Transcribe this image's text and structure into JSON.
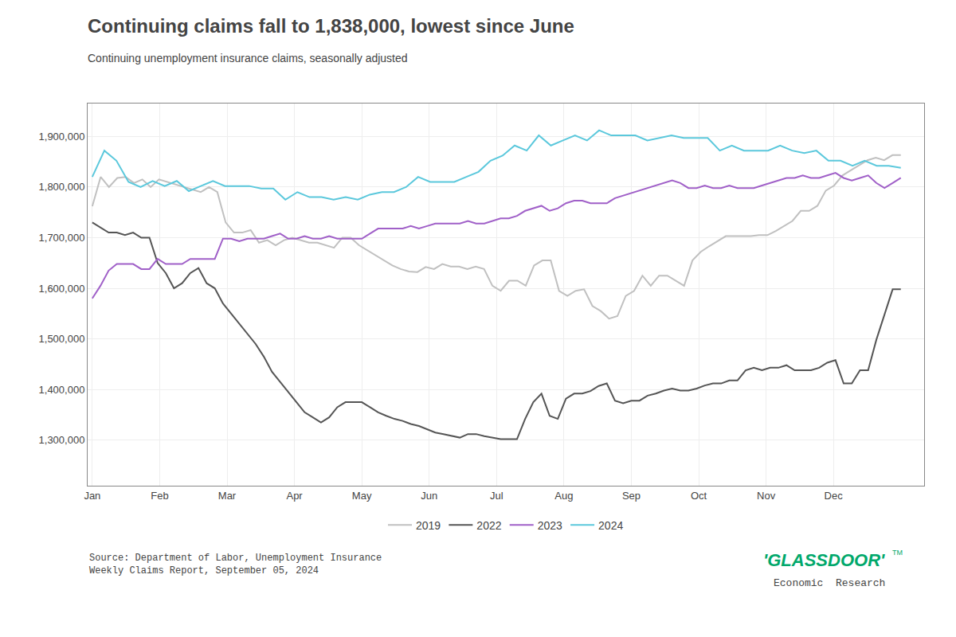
{
  "chart_data": {
    "type": "line",
    "title": "Continuing claims fall to 1,838,000, lowest since June",
    "subtitle": "Continuing unemployment insurance claims, seasonally adjusted",
    "source": "Source: Department of Labor, Unemployment Insurance\nWeekly Claims Report, September 05, 2024",
    "annotations": [
      {
        "text": "'GLASSDOOR'",
        "color": "#00a86b"
      },
      {
        "text": "TM",
        "color": "#00a86b"
      },
      {
        "text": "Economic  Research"
      }
    ],
    "xlim": [
      -0.3,
      53.5
    ],
    "xticks": [
      {
        "value": 0,
        "label": "Jan"
      },
      {
        "value": 4.3333,
        "label": "Feb"
      },
      {
        "value": 8.6667,
        "label": "Mar"
      },
      {
        "value": 13,
        "label": "Apr"
      },
      {
        "value": 17.3333,
        "label": "May"
      },
      {
        "value": 21.6667,
        "label": "Jun"
      },
      {
        "value": 26,
        "label": "Jul"
      },
      {
        "value": 30.3333,
        "label": "Aug"
      },
      {
        "value": 34.6667,
        "label": "Sep"
      },
      {
        "value": 39,
        "label": "Oct"
      },
      {
        "value": 43.3333,
        "label": "Nov"
      },
      {
        "value": 47.6667,
        "label": "Dec"
      }
    ],
    "ylim": [
      1210000,
      1965000
    ],
    "yticks": [
      {
        "value": 1300000,
        "label": "1,300,000"
      },
      {
        "value": 1400000,
        "label": "1,400,000"
      },
      {
        "value": 1500000,
        "label": "1,500,000"
      },
      {
        "value": 1600000,
        "label": "1,600,000"
      },
      {
        "value": 1700000,
        "label": "1,700,000"
      },
      {
        "value": 1800000,
        "label": "1,800,000"
      },
      {
        "value": 1900000,
        "label": "1,900,000"
      }
    ],
    "grid": true,
    "legend": "bottom",
    "series": [
      {
        "name": "2019",
        "color": "#c0c0c0",
        "x": [
          0,
          0.5361,
          1.0722,
          1.6082,
          2.1443,
          2.6804,
          3.2165,
          3.7526,
          4.2887,
          4.8247,
          5.3608,
          5.8969,
          6.433,
          6.9691,
          7.5052,
          8.0412,
          8.5773,
          9.1134,
          9.6495,
          10.1856,
          10.7216,
          11.2577,
          11.7938,
          12.3299,
          12.866,
          13.4021,
          13.9381,
          14.4742,
          15.0103,
          15.5464,
          16.0825,
          16.6186,
          17.1546,
          17.6907,
          18.2268,
          18.7629,
          19.299,
          19.8351,
          20.3711,
          20.9072,
          21.4433,
          21.9794,
          22.5155,
          23.0515,
          23.5876,
          24.1237,
          24.6598,
          25.1959,
          25.732,
          26.268,
          26.8041,
          27.3402,
          27.8763,
          28.4124,
          28.9485,
          29.4845,
          30.0206,
          30.5567,
          31.0928,
          31.6289,
          32.1649,
          32.701,
          33.2371,
          33.7732,
          34.3093,
          34.8454,
          35.3814,
          35.9175,
          36.4536,
          36.9897,
          37.5258,
          38.0619,
          38.5979,
          39.134,
          39.6701,
          40.2062,
          40.7423,
          41.2784,
          41.8144,
          42.3505,
          42.8866,
          43.4227,
          43.9588,
          44.4948,
          45.0309,
          45.567,
          46.1031,
          46.6392,
          47.1753,
          47.7113,
          48.2474,
          48.7835,
          49.3196,
          49.8557,
          50.3918,
          50.9278,
          51.4639,
          52
        ],
        "values": [
          1762000,
          1820000,
          1800000,
          1818000,
          1820000,
          1808000,
          1815000,
          1800000,
          1815000,
          1810000,
          1805000,
          1800000,
          1795000,
          1790000,
          1800000,
          1790000,
          1730000,
          1710000,
          1710000,
          1715000,
          1690000,
          1695000,
          1685000,
          1695000,
          1700000,
          1695000,
          1690000,
          1690000,
          1685000,
          1680000,
          1700000,
          1700000,
          1685000,
          1675000,
          1665000,
          1655000,
          1645000,
          1638000,
          1633000,
          1632000,
          1642000,
          1638000,
          1648000,
          1643000,
          1643000,
          1638000,
          1643000,
          1638000,
          1605000,
          1595000,
          1615000,
          1615000,
          1605000,
          1645000,
          1655000,
          1655000,
          1595000,
          1585000,
          1595000,
          1598000,
          1565000,
          1555000,
          1540000,
          1545000,
          1585000,
          1595000,
          1625000,
          1605000,
          1625000,
          1625000,
          1615000,
          1605000,
          1655000,
          1672000,
          1683000,
          1693000,
          1703000,
          1703000,
          1703000,
          1703000,
          1705000,
          1705000,
          1713000,
          1723000,
          1733000,
          1753000,
          1753000,
          1763000,
          1793000,
          1803000,
          1823000,
          1833000,
          1843000,
          1853000,
          1858000,
          1853000,
          1863000,
          1863000
        ]
      },
      {
        "name": "2022",
        "color": "#555555",
        "x": [
          0,
          0.5253,
          1.0505,
          1.5758,
          2.101,
          2.6263,
          3.1515,
          3.6768,
          4.202,
          4.7273,
          5.2525,
          5.7778,
          6.303,
          6.8283,
          7.3535,
          7.8788,
          8.404,
          8.9293,
          9.4545,
          9.9798,
          10.5051,
          11.0303,
          11.5556,
          12.0808,
          12.6061,
          13.1313,
          13.6566,
          14.1818,
          14.7071,
          15.2323,
          15.7576,
          16.2828,
          16.8081,
          17.3333,
          17.8586,
          18.3838,
          18.9091,
          19.4343,
          19.9596,
          20.4848,
          21.0101,
          21.5354,
          22.0606,
          22.5859,
          23.1111,
          23.6364,
          24.1616,
          24.6869,
          25.2121,
          25.7374,
          26.2626,
          26.7879,
          27.3131,
          27.8384,
          28.3636,
          28.8889,
          29.4141,
          29.9394,
          30.4646,
          30.9899,
          31.5152,
          32.0404,
          32.5657,
          33.0909,
          33.6162,
          34.1414,
          34.6667,
          35.1919,
          35.7172,
          36.2424,
          36.7677,
          37.2929,
          37.8182,
          38.3434,
          38.8687,
          39.3939,
          39.9192,
          40.4444,
          40.9697,
          41.4949,
          42.0202,
          42.5455,
          43.0707,
          43.596,
          44.1212,
          44.6465,
          45.1717,
          45.697,
          46.2222,
          46.7475,
          47.2727,
          47.798,
          48.3232,
          48.8485,
          49.3737,
          49.899,
          50.4242,
          50.9495,
          51.4747,
          52
        ],
        "values": [
          1730000,
          1720000,
          1710000,
          1710000,
          1705000,
          1710000,
          1700000,
          1700000,
          1650000,
          1630000,
          1600000,
          1610000,
          1630000,
          1640000,
          1610000,
          1600000,
          1570000,
          1550000,
          1530000,
          1510000,
          1490000,
          1465000,
          1435000,
          1415000,
          1395000,
          1375000,
          1355000,
          1345000,
          1335000,
          1345000,
          1365000,
          1375000,
          1375000,
          1375000,
          1365000,
          1355000,
          1348000,
          1342000,
          1338000,
          1332000,
          1328000,
          1322000,
          1315000,
          1312000,
          1308000,
          1305000,
          1312000,
          1312000,
          1308000,
          1305000,
          1302000,
          1302000,
          1302000,
          1342000,
          1375000,
          1392000,
          1348000,
          1342000,
          1382000,
          1392000,
          1392000,
          1397000,
          1407000,
          1412000,
          1378000,
          1373000,
          1378000,
          1378000,
          1388000,
          1392000,
          1398000,
          1402000,
          1398000,
          1398000,
          1402000,
          1408000,
          1412000,
          1412000,
          1418000,
          1418000,
          1438000,
          1443000,
          1438000,
          1443000,
          1443000,
          1448000,
          1438000,
          1438000,
          1438000,
          1443000,
          1453000,
          1458000,
          1412000,
          1412000,
          1438000,
          1438000,
          1498000,
          1548000,
          1598000,
          1598000
        ]
      },
      {
        "name": "2023",
        "color": "#a060c8",
        "x": [
          0,
          0.5253,
          1.0505,
          1.5758,
          2.101,
          2.6263,
          3.1515,
          3.6768,
          4.202,
          4.7273,
          5.2525,
          5.7778,
          6.303,
          6.8283,
          7.3535,
          7.8788,
          8.404,
          8.9293,
          9.4545,
          9.9798,
          10.5051,
          11.0303,
          11.5556,
          12.0808,
          12.6061,
          13.1313,
          13.6566,
          14.1818,
          14.7071,
          15.2323,
          15.7576,
          16.2828,
          16.8081,
          17.3333,
          17.8586,
          18.3838,
          18.9091,
          19.4343,
          19.9596,
          20.4848,
          21.0101,
          21.5354,
          22.0606,
          22.5859,
          23.1111,
          23.6364,
          24.1616,
          24.6869,
          25.2121,
          25.7374,
          26.2626,
          26.7879,
          27.3131,
          27.8384,
          28.3636,
          28.8889,
          29.4141,
          29.9394,
          30.4646,
          30.9899,
          31.5152,
          32.0404,
          32.5657,
          33.0909,
          33.6162,
          34.1414,
          34.6667,
          35.1919,
          35.7172,
          36.2424,
          36.7677,
          37.2929,
          37.8182,
          38.3434,
          38.8687,
          39.3939,
          39.9192,
          40.4444,
          40.9697,
          41.4949,
          42.0202,
          42.5455,
          43.0707,
          43.596,
          44.1212,
          44.6465,
          45.1717,
          45.697,
          46.2222,
          46.7475,
          47.2727,
          47.798,
          48.3232,
          48.8485,
          49.3737,
          49.899,
          50.4242,
          50.9495,
          51.4747,
          52
        ],
        "values": [
          1580000,
          1605000,
          1635000,
          1648000,
          1648000,
          1648000,
          1638000,
          1638000,
          1658000,
          1648000,
          1648000,
          1648000,
          1658000,
          1658000,
          1658000,
          1658000,
          1698000,
          1698000,
          1693000,
          1698000,
          1698000,
          1698000,
          1703000,
          1708000,
          1698000,
          1698000,
          1703000,
          1698000,
          1698000,
          1703000,
          1698000,
          1698000,
          1698000,
          1698000,
          1708000,
          1718000,
          1718000,
          1718000,
          1718000,
          1723000,
          1718000,
          1723000,
          1728000,
          1728000,
          1728000,
          1728000,
          1733000,
          1728000,
          1728000,
          1733000,
          1738000,
          1738000,
          1743000,
          1753000,
          1758000,
          1763000,
          1753000,
          1758000,
          1768000,
          1773000,
          1773000,
          1768000,
          1768000,
          1768000,
          1778000,
          1783000,
          1788000,
          1793000,
          1798000,
          1803000,
          1808000,
          1813000,
          1808000,
          1798000,
          1798000,
          1803000,
          1798000,
          1798000,
          1803000,
          1798000,
          1798000,
          1798000,
          1803000,
          1808000,
          1813000,
          1818000,
          1818000,
          1823000,
          1818000,
          1818000,
          1823000,
          1828000,
          1818000,
          1813000,
          1818000,
          1823000,
          1808000,
          1798000,
          1808000,
          1818000
        ]
      },
      {
        "name": "2024",
        "color": "#5bc8dc",
        "x": [
          0,
          0.7761,
          1.5522,
          2.3284,
          3.1045,
          3.8806,
          4.6567,
          5.4328,
          6.209,
          6.9851,
          7.7612,
          8.5373,
          9.3134,
          10.0896,
          10.8657,
          11.6418,
          12.4179,
          13.194,
          13.9701,
          14.7463,
          15.5224,
          16.2985,
          17.0746,
          17.8507,
          18.6269,
          19.403,
          20.1791,
          20.9552,
          21.7313,
          22.5075,
          23.2836,
          24.0597,
          24.8358,
          25.6119,
          26.3881,
          27.1642,
          27.9403,
          28.7164,
          29.4925,
          30.2687,
          31.0448,
          31.8209,
          32.597,
          33.3731,
          34.1493,
          34.9254,
          35.7015,
          36.4776,
          37.2537,
          38.0299,
          38.806,
          39.5821,
          40.3582,
          41.1343,
          41.9104,
          42.6866,
          43.4627,
          44.2388,
          45.0149,
          45.791,
          46.5672,
          47.3433,
          48.1194,
          48.8955,
          49.6716,
          50.4478,
          51.2239,
          52
        ],
        "values": [
          1820000,
          1872000,
          1852000,
          1810000,
          1800000,
          1812000,
          1802000,
          1812000,
          1792000,
          1802000,
          1812000,
          1802000,
          1802000,
          1802000,
          1797000,
          1797000,
          1775000,
          1790000,
          1780000,
          1780000,
          1775000,
          1780000,
          1775000,
          1785000,
          1790000,
          1790000,
          1800000,
          1820000,
          1810000,
          1810000,
          1810000,
          1820000,
          1830000,
          1852000,
          1862000,
          1882000,
          1872000,
          1902000,
          1882000,
          1892000,
          1902000,
          1892000,
          1912000,
          1902000,
          1902000,
          1902000,
          1892000,
          1897000,
          1902000,
          1897000,
          1897000,
          1897000,
          1872000,
          1882000,
          1872000,
          1872000,
          1872000,
          1882000,
          1872000,
          1867000,
          1872000,
          1852000,
          1852000,
          1842000,
          1852000,
          1842000,
          1842000,
          1838000
        ]
      }
    ]
  }
}
